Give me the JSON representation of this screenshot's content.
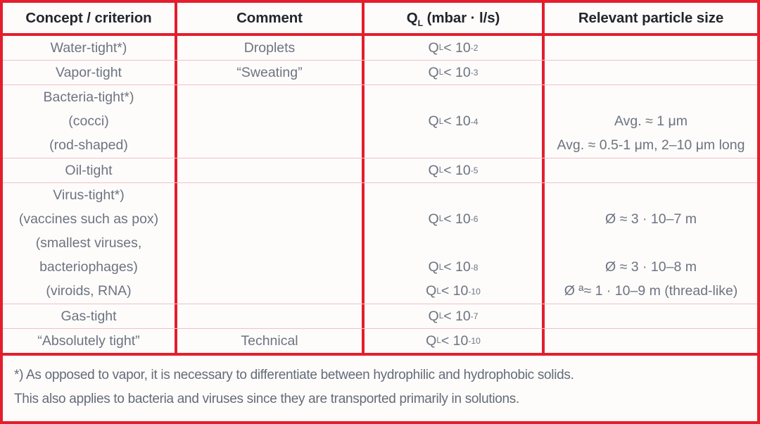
{
  "table": {
    "headers": [
      "Concept / criterion",
      "Comment",
      "Q_{L} (mbar · l/s)",
      "Relevant particle size"
    ],
    "rows": [
      {
        "id": "water-tight",
        "cells": [
          [
            "Water-tight*)"
          ],
          [
            "Droplets"
          ],
          [
            "Q_{L} < 10^{-2}"
          ],
          [
            ""
          ]
        ]
      },
      {
        "id": "vapor-tight",
        "cells": [
          [
            "Vapor-tight"
          ],
          [
            "“Sweating”"
          ],
          [
            "Q_{L} < 10^{-3}"
          ],
          [
            ""
          ]
        ]
      },
      {
        "id": "bacteria-tight",
        "cells": [
          [
            "Bacteria-tight*)",
            "(cocci)",
            "(rod-shaped)"
          ],
          [
            "",
            "",
            ""
          ],
          [
            "",
            "Q_{L} < 10^{-4}",
            ""
          ],
          [
            "",
            "Avg. ≈ 1 μm",
            "Avg. ≈ 0.5-1 μm, 2–10 μm long"
          ]
        ]
      },
      {
        "id": "oil-tight",
        "cells": [
          [
            "Oil-tight"
          ],
          [
            ""
          ],
          [
            "Q_{L} < 10^{-5}"
          ],
          [
            ""
          ]
        ]
      },
      {
        "id": "virus-tight",
        "cells": [
          [
            "Virus-tight*)",
            "(vaccines such as pox)",
            "(smallest viruses,",
            "bacteriophages)",
            "(viroids, RNA)"
          ],
          [
            "",
            "",
            "",
            "",
            ""
          ],
          [
            "",
            "Q_{L} < 10^{-6}",
            "",
            "Q_{L} < 10^{-8}",
            "Q_{L} < 10^{-10}"
          ],
          [
            "",
            "Ø ≈ 3 · 10–7 m",
            "",
            "Ø ≈ 3 · 10–8 m",
            "Ø ª≈ 1 · 10–9 m (thread-like)"
          ]
        ]
      },
      {
        "id": "gas-tight",
        "cells": [
          [
            "Gas-tight"
          ],
          [
            ""
          ],
          [
            "Q_{L} < 10^{-7}"
          ],
          [
            ""
          ]
        ]
      },
      {
        "id": "absolutely-tight",
        "cells": [
          [
            "“Absolutely tight”"
          ],
          [
            "Technical"
          ],
          [
            "Q_{L} < 10^{-10}"
          ],
          [
            ""
          ]
        ]
      }
    ]
  },
  "footnote": {
    "line1": "*) As opposed to vapor, it is necessary to differentiate between hydrophilic and hydrophobic solids.",
    "line2": "This also applies to bacteria and viruses since they are transported primarily in solutions."
  },
  "colors": {
    "accent_red": "#e31e2d",
    "row_divider_pink": "#f3bfc6",
    "header_text": "#23262c",
    "body_text": "#6d7380",
    "footnote_text": "#646b78",
    "background": "#fdfcfb"
  }
}
